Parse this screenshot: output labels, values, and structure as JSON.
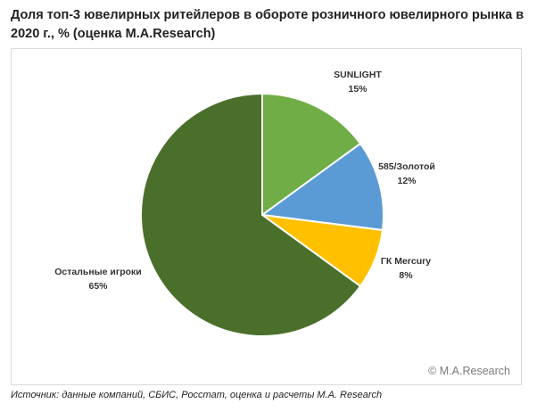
{
  "chart_data": {
    "type": "pie",
    "title": "Доля топ-3 ювелирных ритейлеров в обороте розничного ювелирного рынка в 2020 г., % (оценка M.A.Research)",
    "slices": [
      {
        "label": "SUNLIGHT",
        "value": 15,
        "value_label": "15%",
        "color": "#70ad47"
      },
      {
        "label": "585/Золотой",
        "value": 12,
        "value_label": "12%",
        "color": "#5b9bd5"
      },
      {
        "label": "ГК Mercury",
        "value": 8,
        "value_label": "8%",
        "color": "#ffc000"
      },
      {
        "label": "Остальные игроки",
        "value": 65,
        "value_label": "65%",
        "color": "#4a6f2a"
      }
    ],
    "start": "12 o'clock",
    "direction": "clockwise"
  },
  "watermark": "© M.A.Research",
  "source": "Источник: данные компаний, СБИС, Росстат, оценка и расчеты M.A. Research"
}
